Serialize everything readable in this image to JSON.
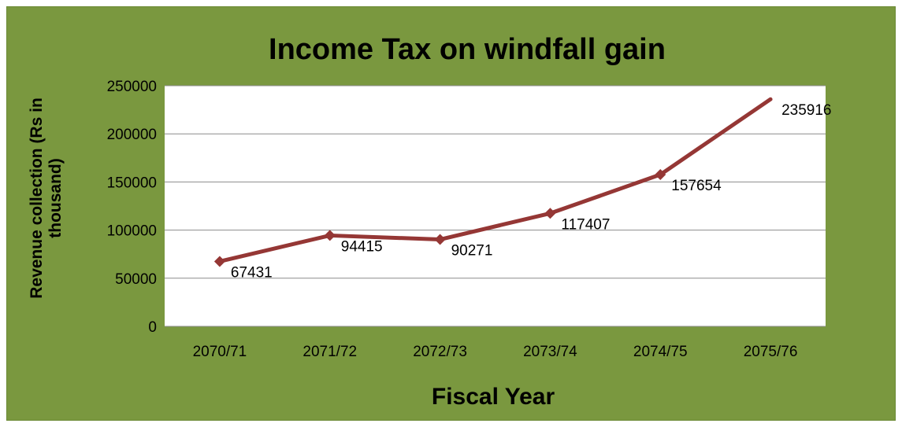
{
  "chart_data": {
    "type": "line",
    "title": "Income Tax on windfall gain",
    "xlabel": "Fiscal Year",
    "ylabel_lines": [
      "Revenue collection (Rs in",
      "thousand)"
    ],
    "categories": [
      "2070/71",
      "2071/72",
      "2072/73",
      "2073/74",
      "2074/75",
      "2075/76"
    ],
    "series": [
      {
        "values": [
          67431,
          94415,
          90271,
          117407,
          157654,
          235916
        ]
      }
    ],
    "data_labels": [
      "67431",
      "94415",
      "90271",
      "117407",
      "157654",
      "235916"
    ],
    "ylim": [
      0,
      250000
    ],
    "yticks": [
      "0",
      "50000",
      "100000",
      "150000",
      "200000",
      "250000"
    ],
    "grid": true,
    "legend": "none",
    "colors": {
      "background": "#7a983f",
      "plot_area": "#ffffff",
      "line": "#953735",
      "grid": "#8c8c8c"
    }
  }
}
